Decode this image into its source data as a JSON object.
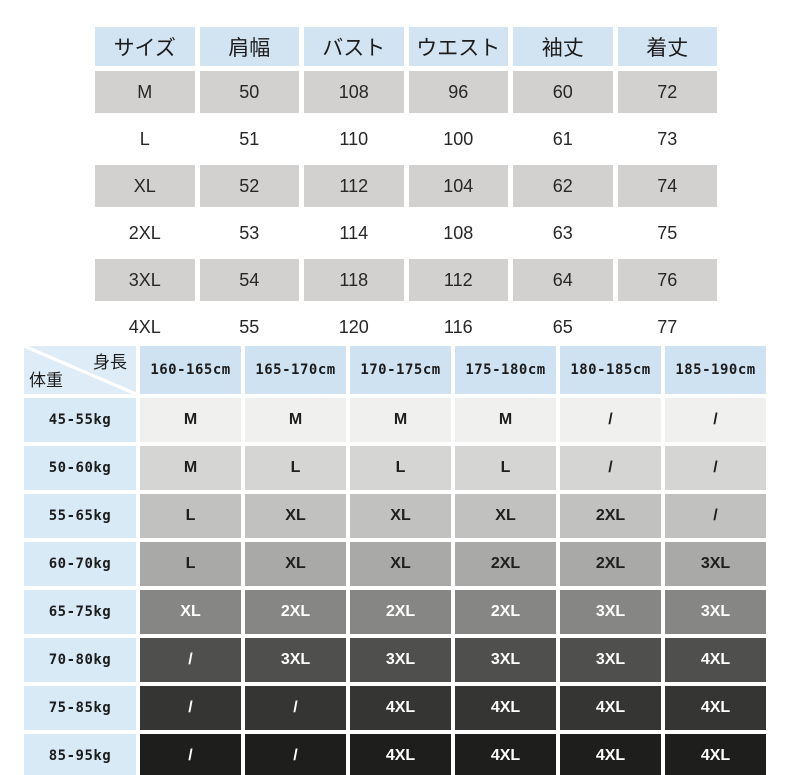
{
  "chart_data": [
    {
      "type": "table",
      "name": "size_measurements",
      "columns": [
        "サイズ",
        "肩幅",
        "バスト",
        "ウエスト",
        "袖丈",
        "着丈"
      ],
      "rows": [
        [
          "M",
          "50",
          "108",
          "96",
          "60",
          "72"
        ],
        [
          "L",
          "51",
          "110",
          "100",
          "61",
          "73"
        ],
        [
          "XL",
          "52",
          "112",
          "104",
          "62",
          "74"
        ],
        [
          "2XL",
          "53",
          "114",
          "108",
          "63",
          "75"
        ],
        [
          "3XL",
          "54",
          "118",
          "112",
          "64",
          "76"
        ],
        [
          "4XL",
          "55",
          "120",
          "116",
          "65",
          "77"
        ]
      ]
    },
    {
      "type": "table",
      "name": "size_recommendation_matrix",
      "corner": {
        "height_label": "身長",
        "weight_label": "体重"
      },
      "columns": [
        "160-165cm",
        "165-170cm",
        "170-175cm",
        "175-180cm",
        "180-185cm",
        "185-190cm"
      ],
      "row_labels": [
        "45-55kg",
        "50-60kg",
        "55-65kg",
        "60-70kg",
        "65-75kg",
        "70-80kg",
        "75-85kg",
        "85-95kg"
      ],
      "rows": [
        [
          "M",
          "M",
          "M",
          "M",
          "/",
          "/"
        ],
        [
          "M",
          "L",
          "L",
          "L",
          "/",
          "/"
        ],
        [
          "L",
          "XL",
          "XL",
          "XL",
          "2XL",
          "/"
        ],
        [
          "L",
          "XL",
          "XL",
          "2XL",
          "2XL",
          "3XL"
        ],
        [
          "XL",
          "2XL",
          "2XL",
          "2XL",
          "3XL",
          "3XL"
        ],
        [
          "/",
          "3XL",
          "3XL",
          "3XL",
          "3XL",
          "4XL"
        ],
        [
          "/",
          "/",
          "4XL",
          "4XL",
          "4XL",
          "4XL"
        ],
        [
          "/",
          "/",
          "4XL",
          "4XL",
          "4XL",
          "4XL"
        ]
      ]
    }
  ],
  "colors": {
    "header_blue": "#d2e4f2",
    "matrix_header_blue": "#cfe2f1",
    "weight_label_blue": "#d9eaf7",
    "size_row_gray": "#d2d1cf",
    "row_shades": [
      "#f0f0ee",
      "#d5d5d3",
      "#c1c1bf",
      "#a9a9a7",
      "#868684",
      "#4f4f4d",
      "#353533",
      "#1e1e1c"
    ],
    "row_text_colors": [
      "#1f1f1f",
      "#1f1f1f",
      "#1f1f1f",
      "#1f1f1f",
      "#ffffff",
      "#ffffff",
      "#ffffff",
      "#ffffff"
    ]
  }
}
